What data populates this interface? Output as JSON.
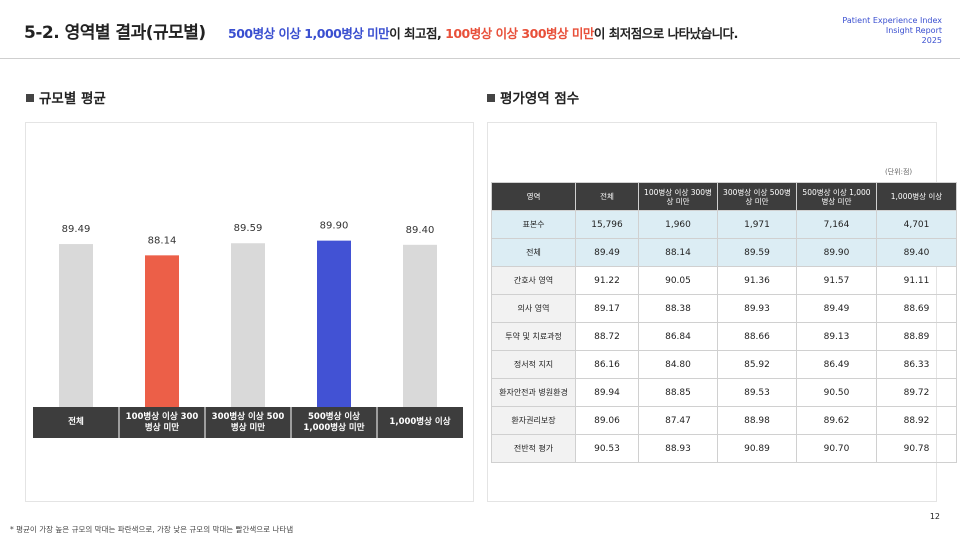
{
  "header": {
    "title": "5-2. 영역별 결과(규모별)",
    "subtitle": [
      {
        "text": "500병상 이상 1,000병상 미만",
        "color": "#3a4fd0"
      },
      {
        "text": "이 최고점, ",
        "color": "#222222"
      },
      {
        "text": "100병상 이상 300병상 미만",
        "color": "#e8503a"
      },
      {
        "text": "이 최저점으로 나타났습니다.",
        "color": "#222222"
      }
    ],
    "brand": [
      "Patient Experience Index",
      "Insight Report",
      "2025"
    ]
  },
  "left_section_title": "규모별 평균",
  "right_section_title": "평가영역 점수",
  "chart_data": {
    "type": "bar",
    "categories": [
      "전체",
      "100병상 이상 300병상 미만",
      "300병상 이상 500병상 미만",
      "500병상 이상 1,000병상 미만",
      "1,000병상 이상"
    ],
    "values": [
      89.49,
      88.14,
      89.59,
      89.9,
      89.4
    ],
    "value_labels": [
      "89.49",
      "88.14",
      "89.59",
      "89.90",
      "89.40"
    ],
    "colors": [
      "#d9d9d9",
      "#ec5f48",
      "#d9d9d9",
      "#4252d4",
      "#d9d9d9"
    ],
    "ylim": [
      70,
      90
    ]
  },
  "table": {
    "unit": "(단위:점)",
    "header": [
      "영역",
      "전체",
      "100병상 이상 300병상 미만",
      "300병상 이상 500병상 미만",
      "500병상 이상 1,000병상 미만",
      "1,000병상 이상"
    ],
    "rows": [
      [
        "표본수",
        "15,796",
        "1,960",
        "1,971",
        "7,164",
        "4,701"
      ],
      [
        "전체",
        "89.49",
        "88.14",
        "89.59",
        "89.90",
        "89.40"
      ],
      [
        "간호사 영역",
        "91.22",
        "90.05",
        "91.36",
        "91.57",
        "91.11"
      ],
      [
        "의사 영역",
        "89.17",
        "88.38",
        "89.93",
        "89.49",
        "88.69"
      ],
      [
        "투약 및 치료과정",
        "88.72",
        "86.84",
        "88.66",
        "89.13",
        "88.89"
      ],
      [
        "정서적 지지",
        "86.16",
        "84.80",
        "85.92",
        "86.49",
        "86.33"
      ],
      [
        "환자안전과 병원환경",
        "89.94",
        "88.85",
        "89.53",
        "90.50",
        "89.72"
      ],
      [
        "환자권리보장",
        "89.06",
        "87.47",
        "88.98",
        "89.62",
        "88.92"
      ],
      [
        "전반적 평가",
        "90.53",
        "88.93",
        "90.89",
        "90.70",
        "90.78"
      ]
    ]
  },
  "footnote": "* 평균이 가장 높은 규모의 막대는 파란색으로, 가장 낮은 규모의 막대는 빨간색으로 나타냄",
  "page_number": "12"
}
